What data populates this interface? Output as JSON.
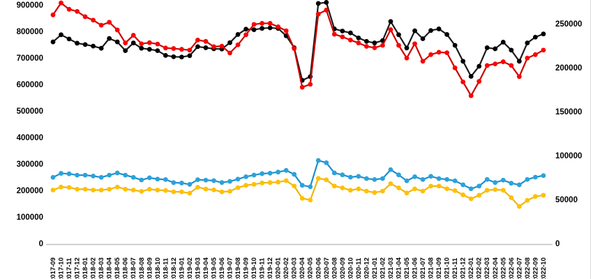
{
  "chart_data": {
    "type": "line",
    "title": "",
    "legend": "none",
    "grid": "off",
    "background": "#FFFFFF",
    "axis_line_color": "#BFBFBF",
    "border_edge_color": "#D9D9D9",
    "x": [
      "2017-09",
      "2017-10",
      "2017-11",
      "2017-12",
      "2018-01",
      "2018-02",
      "2018-03",
      "2018-04",
      "2018-05",
      "2018-06",
      "2018-07",
      "2018-08",
      "2018-09",
      "2018-10",
      "2018-11",
      "2018-12",
      "2019-01",
      "2019-02",
      "2019-03",
      "2019-04",
      "2019-05",
      "2019-06",
      "2019-07",
      "2019-08",
      "2019-09",
      "2019-10",
      "2019-11",
      "2019-12",
      "2020-01",
      "2020-02",
      "2020-03",
      "2020-04",
      "2020-05",
      "2020-06",
      "2020-07",
      "2020-08",
      "2020-09",
      "2020-10",
      "2020-11",
      "2020-12",
      "2021-01",
      "2021-02",
      "2021-03",
      "2021-04",
      "2021-05",
      "2021-06",
      "2021-07",
      "2021-08",
      "2021-09",
      "2021-10",
      "2021-11",
      "2021-12",
      "2022-01",
      "2022-02",
      "2022-03",
      "2022-04",
      "2022-05",
      "2022-06",
      "2022-07",
      "2022-08",
      "2022-09",
      "2022-10"
    ],
    "left_axis": {
      "min": 0,
      "max": 900000,
      "step": 100000,
      "tick_labels": [
        "0",
        "100000",
        "200000",
        "300000",
        "400000",
        "500000",
        "600000",
        "700000",
        "800000",
        "900000"
      ]
    },
    "right_axis": {
      "min": 0,
      "max": 250000,
      "step": 50000,
      "tick_labels": [
        "0",
        "50000",
        "100000",
        "150000",
        "200000",
        "250000"
      ]
    },
    "series": [
      {
        "name": "series-black",
        "axis": "left",
        "line_color": "#1A1A1A",
        "marker_color": "#000000",
        "values": [
          763000,
          790000,
          774000,
          758000,
          753000,
          747000,
          739000,
          776000,
          763000,
          730000,
          759000,
          739000,
          735000,
          730000,
          712000,
          707000,
          706000,
          711000,
          745000,
          741000,
          737000,
          736000,
          760000,
          791000,
          811000,
          809000,
          814000,
          816000,
          814000,
          786000,
          741000,
          618000,
          632000,
          908000,
          912000,
          812000,
          804000,
          797000,
          778000,
          765000,
          759000,
          768000,
          840000,
          790000,
          740000,
          805000,
          775000,
          806000,
          812000,
          791000,
          750000,
          690000,
          633000,
          671000,
          741000,
          737000,
          762000,
          732000,
          690000,
          759000,
          781000,
          793000
        ]
      },
      {
        "name": "series-red",
        "axis": "left",
        "line_color": "#CC0000",
        "marker_color": "#FB0000",
        "values": [
          865000,
          910000,
          886000,
          878000,
          858000,
          845000,
          826000,
          837000,
          808000,
          759000,
          788000,
          756000,
          760000,
          755000,
          740000,
          738000,
          735000,
          732000,
          770000,
          765000,
          745000,
          747000,
          721000,
          752000,
          790000,
          829000,
          833000,
          833000,
          820000,
          805000,
          738000,
          592000,
          603000,
          868000,
          883000,
          792000,
          782000,
          770000,
          759000,
          746000,
          741000,
          750000,
          809000,
          750000,
          702000,
          756000,
          690000,
          715000,
          724000,
          722000,
          665000,
          612000,
          560000,
          614000,
          674000,
          680000,
          688000,
          674000,
          632000,
          702000,
          715000,
          732000
        ]
      },
      {
        "name": "series-blue",
        "axis": "right",
        "line_color": "#1D8FCC",
        "marker_color": "#2BA2DB",
        "values": [
          76000,
          80500,
          80000,
          78500,
          78500,
          77500,
          76000,
          78500,
          81000,
          78500,
          76000,
          73000,
          75500,
          74000,
          73500,
          70000,
          69500,
          68000,
          73300,
          72800,
          72200,
          70100,
          71400,
          74000,
          76700,
          78600,
          80200,
          80700,
          82000,
          83900,
          79400,
          66900,
          65300,
          95200,
          92600,
          81000,
          78800,
          76200,
          77200,
          74600,
          73500,
          74600,
          84700,
          78800,
          72000,
          76700,
          73500,
          77200,
          74600,
          73600,
          72000,
          67500,
          63000,
          66100,
          73600,
          70100,
          72800,
          69300,
          67500,
          73600,
          76200,
          78000
        ]
      },
      {
        "name": "series-yellow",
        "axis": "right",
        "line_color": "#F2B50C",
        "marker_color": "#FFC000",
        "values": [
          61500,
          65000,
          64500,
          62500,
          62500,
          61500,
          61500,
          62500,
          65000,
          62500,
          61500,
          60000,
          62500,
          61500,
          61000,
          59500,
          59500,
          58000,
          64800,
          62700,
          61700,
          59500,
          60100,
          64300,
          66900,
          68000,
          69600,
          70100,
          70600,
          72200,
          66100,
          52100,
          50200,
          74800,
          73200,
          66100,
          64000,
          61300,
          62900,
          60300,
          58700,
          60300,
          68800,
          64000,
          58200,
          62900,
          60300,
          66000,
          66100,
          63000,
          60900,
          56100,
          51600,
          55600,
          61300,
          62100,
          61300,
          52900,
          42900,
          49800,
          54200,
          55600
        ]
      }
    ]
  }
}
